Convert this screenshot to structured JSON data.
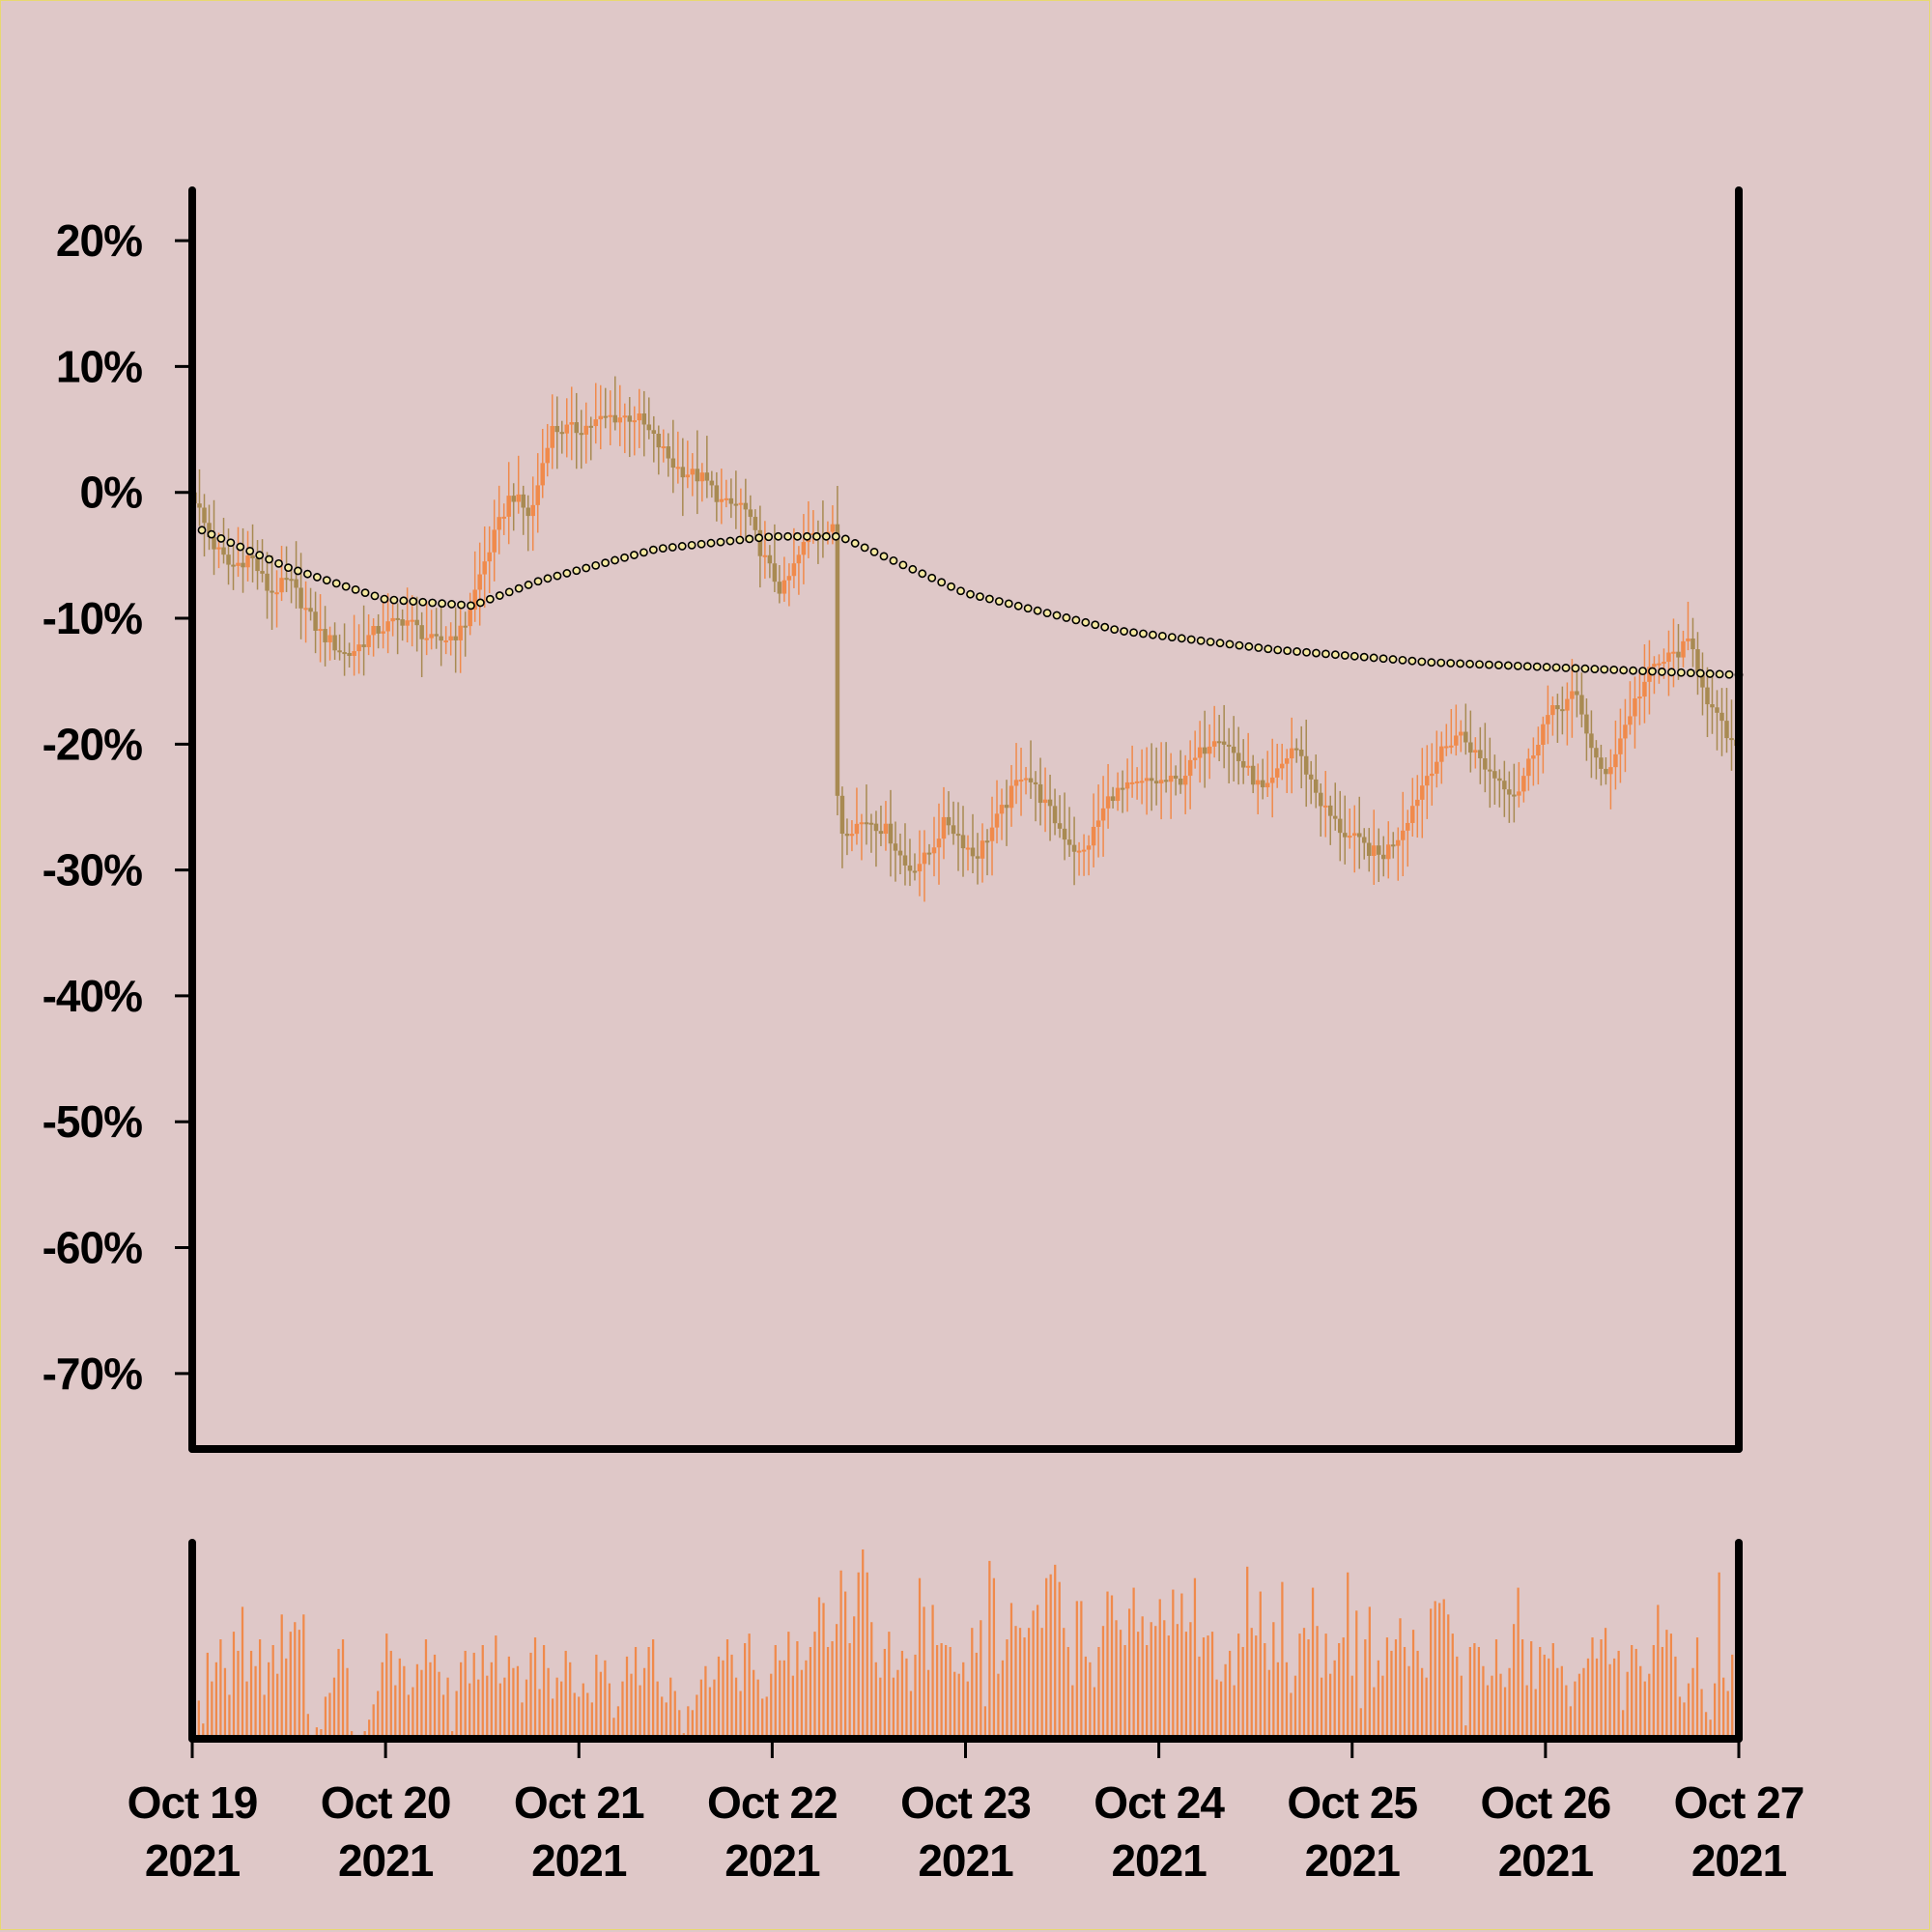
{
  "chart_data": [
    {
      "type": "candlestick",
      "title": "",
      "xlabel": "",
      "ylabel": "",
      "x_range": [
        "2021-10-19",
        "2021-10-27"
      ],
      "ylim": [
        -76,
        24
      ],
      "yticks": [
        20,
        10,
        0,
        -10,
        -20,
        -30,
        -40,
        -50,
        -60,
        -70
      ],
      "ytick_labels": [
        "20%",
        "10%",
        "0%",
        "-10%",
        "-20%",
        "-30%",
        "-40%",
        "-50%",
        "-60%",
        "-70%"
      ],
      "xtick_labels": [
        [
          "Oct 19",
          "2021"
        ],
        [
          "Oct 20",
          "2021"
        ],
        [
          "Oct 21",
          "2021"
        ],
        [
          "Oct 22",
          "2021"
        ],
        [
          "Oct 23",
          "2021"
        ],
        [
          "Oct 24",
          "2021"
        ],
        [
          "Oct 25",
          "2021"
        ],
        [
          "Oct 26",
          "2021"
        ],
        [
          "Oct 27",
          "2021"
        ]
      ],
      "grid": false,
      "series": [
        {
          "kind": "price-candles",
          "colors": {
            "up": "#f08a4b",
            "down": "#a88a52"
          },
          "close_path_days_pct": [
            [
              0.0,
              0
            ],
            [
              0.1,
              -4
            ],
            [
              0.2,
              -6
            ],
            [
              0.3,
              -5
            ],
            [
              0.4,
              -8
            ],
            [
              0.5,
              -7
            ],
            [
              0.65,
              -11
            ],
            [
              0.8,
              -13
            ],
            [
              0.95,
              -11
            ],
            [
              1.1,
              -10
            ],
            [
              1.25,
              -12
            ],
            [
              1.4,
              -11
            ],
            [
              1.5,
              -6
            ],
            [
              1.65,
              0
            ],
            [
              1.75,
              -2
            ],
            [
              1.85,
              5
            ],
            [
              2.0,
              5
            ],
            [
              2.15,
              6
            ],
            [
              2.3,
              6
            ],
            [
              2.4,
              4
            ],
            [
              2.5,
              2
            ],
            [
              2.65,
              1
            ],
            [
              2.75,
              -1
            ],
            [
              2.85,
              -1
            ],
            [
              2.95,
              -5
            ],
            [
              3.05,
              -8
            ],
            [
              3.2,
              -3
            ],
            [
              3.32,
              -3
            ],
            [
              3.34,
              -27
            ],
            [
              3.5,
              -26
            ],
            [
              3.6,
              -27
            ],
            [
              3.7,
              -30
            ],
            [
              3.8,
              -29
            ],
            [
              3.9,
              -26
            ],
            [
              4.05,
              -29
            ],
            [
              4.2,
              -25
            ],
            [
              4.3,
              -22
            ],
            [
              4.5,
              -27
            ],
            [
              4.6,
              -29
            ],
            [
              4.75,
              -24
            ],
            [
              4.95,
              -23
            ],
            [
              5.1,
              -23
            ],
            [
              5.3,
              -19
            ],
            [
              5.4,
              -21
            ],
            [
              5.55,
              -24
            ],
            [
              5.7,
              -20
            ],
            [
              5.85,
              -25
            ],
            [
              5.95,
              -27
            ],
            [
              6.15,
              -29
            ],
            [
              6.25,
              -27
            ],
            [
              6.4,
              -22
            ],
            [
              6.55,
              -19
            ],
            [
              6.7,
              -22
            ],
            [
              6.85,
              -24
            ],
            [
              7.0,
              -18
            ],
            [
              7.15,
              -16
            ],
            [
              7.3,
              -23
            ],
            [
              7.45,
              -17
            ],
            [
              7.55,
              -14
            ],
            [
              7.75,
              -12
            ],
            [
              7.85,
              -17
            ],
            [
              8.0,
              -21
            ]
          ]
        },
        {
          "kind": "moving-average",
          "style": "dotted",
          "color": "#000000",
          "path_days_pct": [
            [
              0.05,
              -3
            ],
            [
              0.5,
              -6
            ],
            [
              1.0,
              -8.5
            ],
            [
              1.45,
              -9
            ],
            [
              1.8,
              -7
            ],
            [
              2.4,
              -4.5
            ],
            [
              3.0,
              -3.5
            ],
            [
              3.35,
              -3.5
            ],
            [
              4.0,
              -8
            ],
            [
              4.8,
              -11
            ],
            [
              5.6,
              -12.5
            ],
            [
              6.4,
              -13.5
            ],
            [
              7.2,
              -14
            ],
            [
              8.0,
              -14.5
            ]
          ]
        }
      ]
    },
    {
      "type": "bar",
      "role": "volume",
      "color": "#f08a4b",
      "title": "",
      "yticks": [],
      "values_relative": [
        0.1,
        0.2,
        0.08,
        0.45,
        0.3,
        0.4,
        0.52,
        0.37,
        0.23,
        0.56,
        0.46,
        0.69,
        0.3,
        0.46,
        0.38,
        0.52,
        0.23,
        0.4,
        0.49,
        0.34,
        0.65,
        0.42,
        0.56,
        0.61,
        0.57,
        0.65,
        0.13,
        0.02,
        0.06,
        0.05,
        0.22,
        0.24,
        0.32,
        0.47,
        0.52,
        0.37,
        0.04,
        0.02,
        0.02,
        0.04,
        0.1,
        0.18,
        0.25,
        0.4,
        0.55,
        0.46,
        0.28,
        0.42,
        0.38,
        0.23,
        0.27,
        0.39,
        0.36,
        0.52,
        0.4,
        0.44,
        0.35,
        0.23,
        0.32,
        0.04,
        0.25,
        0.4,
        0.46,
        0.29,
        0.45,
        0.31,
        0.49,
        0.33,
        0.4,
        0.54,
        0.29,
        0.32,
        0.43,
        0.37,
        0.38,
        0.19,
        0.31,
        0.45,
        0.53,
        0.26,
        0.49,
        0.37,
        0.21,
        0.32,
        0.3,
        0.46,
        0.4,
        0.24,
        0.22,
        0.29,
        0.24,
        0.19,
        0.44,
        0.35,
        0.41,
        0.29,
        0.11,
        0.17,
        0.3,
        0.43,
        0.34,
        0.48,
        0.28,
        0.37,
        0.48,
        0.52,
        0.3,
        0.22,
        0.19,
        0.32,
        0.25,
        0.15,
        0.03,
        0.17,
        0.15,
        0.23,
        0.31,
        0.38,
        0.27,
        0.31,
        0.43,
        0.41,
        0.52,
        0.44,
        0.32,
        0.25,
        0.5,
        0.55,
        0.36,
        0.31,
        0.21,
        0.22,
        0.34,
        0.49,
        0.41,
        0.41,
        0.56,
        0.33,
        0.51,
        0.36,
        0.41,
        0.48,
        0.56,
        0.74,
        0.71,
        0.48,
        0.51,
        0.6,
        0.88,
        0.77,
        0.5,
        0.64,
        0.87,
        0.99,
        0.87,
        0.61,
        0.4,
        0.32,
        0.47,
        0.56,
        0.32,
        0.36,
        0.46,
        0.42,
        0.25,
        0.44,
        0.84,
        0.69,
        0.36,
        0.7,
        0.49,
        0.5,
        0.49,
        0.48,
        0.35,
        0.34,
        0.4,
        0.3,
        0.58,
        0.45,
        0.62,
        0.17,
        0.93,
        0.84,
        0.34,
        0.41,
        0.52,
        0.71,
        0.59,
        0.58,
        0.53,
        0.58,
        0.67,
        0.7,
        0.58,
        0.84,
        0.86,
        0.91,
        0.82,
        0.58,
        0.48,
        0.28,
        0.72,
        0.72,
        0.43,
        0.4,
        0.27,
        0.48,
        0.59,
        0.77,
        0.75,
        0.62,
        0.57,
        0.49,
        0.68,
        0.79,
        0.56,
        0.64,
        0.49,
        0.61,
        0.59,
        0.73,
        0.62,
        0.54,
        0.78,
        0.6,
        0.76,
        0.56,
        0.61,
        0.84,
        0.43,
        0.53,
        0.54,
        0.56,
        0.31,
        0.3,
        0.39,
        0.46,
        0.28,
        0.55,
        0.48,
        0.9,
        0.58,
        0.54,
        0.77,
        0.5,
        0.36,
        0.61,
        0.4,
        0.82,
        0.4,
        0.24,
        0.33,
        0.55,
        0.58,
        0.52,
        0.79,
        0.59,
        0.32,
        0.55,
        0.34,
        0.41,
        0.5,
        0.53,
        0.87,
        0.33,
        0.67,
        0.16,
        0.52,
        0.69,
        0.27,
        0.41,
        0.33,
        0.53,
        0.46,
        0.52,
        0.63,
        0.48,
        0.38,
        0.57,
        0.46,
        0.37,
        0.32,
        0.68,
        0.72,
        0.71,
        0.73,
        0.65,
        0.55,
        0.43,
        0.33,
        0.07,
        0.48,
        0.5,
        0.48,
        0.38,
        0.28,
        0.33,
        0.52,
        0.34,
        0.27,
        0.37,
        0.6,
        0.79,
        0.52,
        0.28,
        0.51,
        0.26,
        0.48,
        0.44,
        0.42,
        0.5,
        0.37,
        0.38,
        0.28,
        0.17,
        0.3,
        0.34,
        0.37,
        0.42,
        0.53,
        0.42,
        0.52,
        0.58,
        0.39,
        0.42,
        0.46,
        0.15,
        0.35,
        0.49,
        0.47,
        0.38,
        0.3,
        0.34,
        0.49,
        0.7,
        0.48,
        0.57,
        0.55,
        0.43,
        0.22,
        0.19,
        0.29,
        0.37,
        0.53,
        0.26,
        0.14,
        0.1,
        0.29,
        0.87,
        0.32,
        0.25,
        0.44,
        0.64
      ]
    }
  ]
}
